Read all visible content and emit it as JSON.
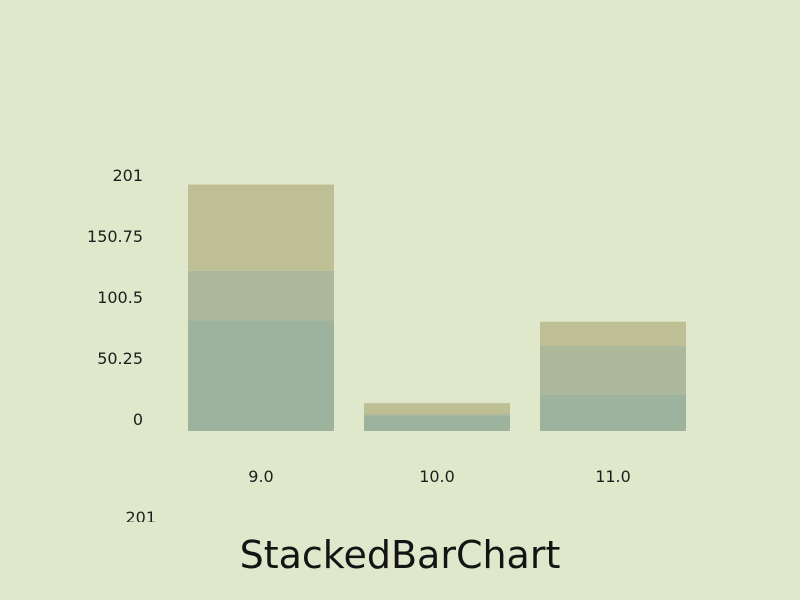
{
  "title": "StackedBarChart",
  "bottom_axis_label": "201",
  "colors": {
    "background": "#dfe8ca",
    "series": [
      "#9db39e",
      "#acb89a",
      "#bfbf96"
    ],
    "text": "#1e1e1e"
  },
  "chart_data": {
    "type": "bar",
    "stacked": true,
    "categories": [
      "9.0",
      "10.0",
      "11.0"
    ],
    "series": [
      {
        "values": [
          91,
          13,
          30
        ]
      },
      {
        "values": [
          41,
          1,
          40
        ]
      },
      {
        "values": [
          71,
          9,
          20
        ]
      }
    ],
    "yticks": [
      "0",
      "50.25",
      "100.5",
      "150.75",
      "201"
    ],
    "ylim": [
      0,
      201
    ],
    "grid": false,
    "legend": "none"
  }
}
